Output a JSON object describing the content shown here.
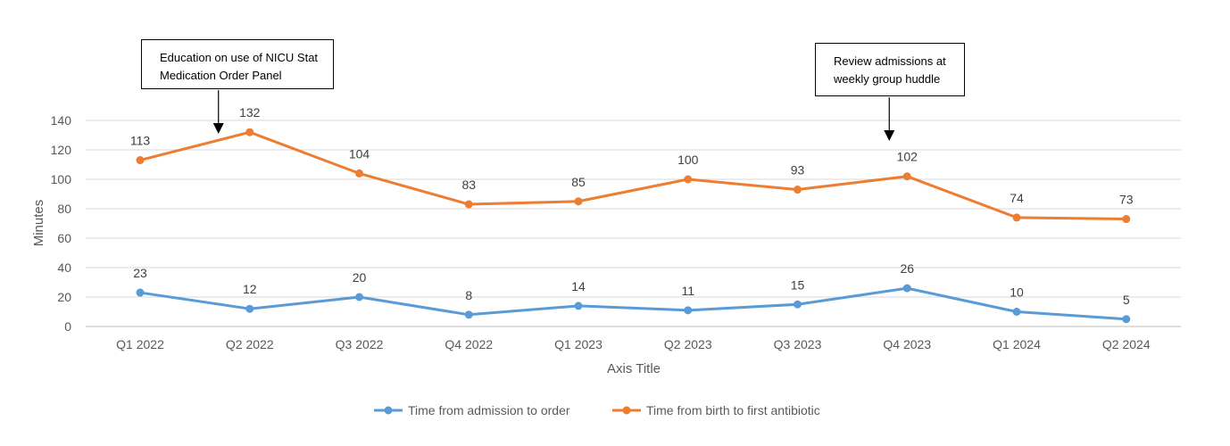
{
  "chart_data": {
    "type": "line",
    "categories": [
      "Q1 2022",
      "Q2 2022",
      "Q3 2022",
      "Q4 2022",
      "Q1 2023",
      "Q2 2023",
      "Q3 2023",
      "Q4 2023",
      "Q1 2024",
      "Q2 2024"
    ],
    "series": [
      {
        "name": "Time from admission to order",
        "color": "#5B9BD5",
        "values": [
          23,
          12,
          20,
          8,
          14,
          11,
          15,
          26,
          10,
          5
        ]
      },
      {
        "name": "Time from birth to first antibiotic",
        "color": "#ED7D31",
        "values": [
          113,
          132,
          104,
          83,
          85,
          100,
          93,
          102,
          74,
          73
        ]
      }
    ],
    "xlabel": "Axis Title",
    "ylabel": "Minutes",
    "ylim": [
      0,
      140
    ],
    "yticks": [
      0,
      20,
      40,
      60,
      80,
      100,
      120,
      140
    ],
    "grid": true,
    "legend_position": "bottom",
    "annotations": [
      {
        "lines": [
          "Education on use of NICU Stat",
          "Medication Order Panel"
        ],
        "category": "Q2 2022"
      },
      {
        "lines": [
          "Review admissions at",
          "weekly group huddle"
        ],
        "category": "Q4 2023"
      }
    ]
  }
}
